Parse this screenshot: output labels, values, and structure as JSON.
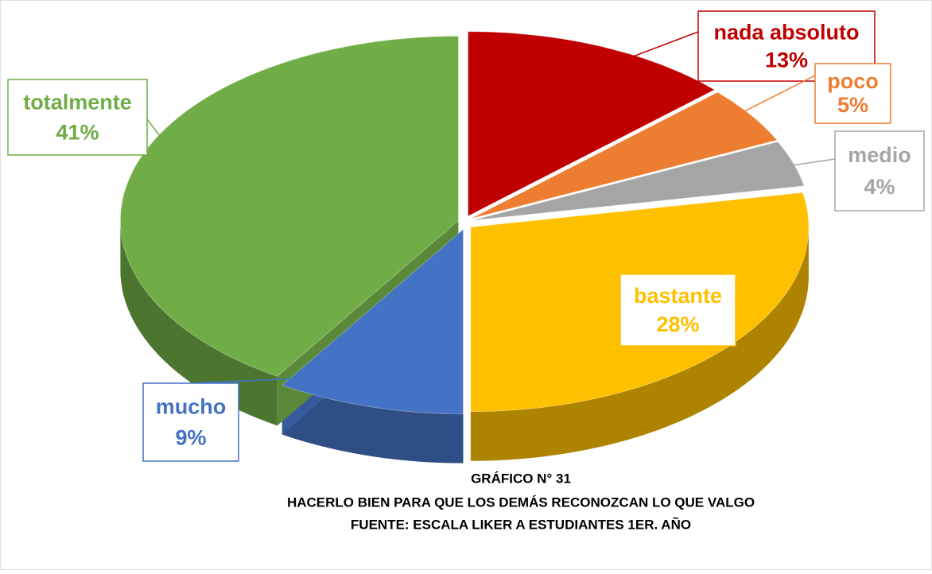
{
  "chart_data": {
    "type": "pie",
    "title": "GRÁFICO N° 31",
    "subtitle": "HACERLO BIEN PARA QUE LOS DEMÁS RECONOZCAN LO QUE VALGO",
    "source": "FUENTE: ESCALA LIKER A ESTUDIANTES 1ER. AÑO",
    "categories": [
      "nada absoluto",
      "poco",
      "medio",
      "bastante",
      "mucho",
      "totalmente"
    ],
    "values": [
      13,
      5,
      4,
      28,
      9,
      41
    ],
    "value_labels": [
      "13%",
      "5%",
      "4%",
      "28%",
      "9%",
      "41%"
    ],
    "colors": [
      "#c00000",
      "#ed7d31",
      "#a5a5a5",
      "#ffc000",
      "#4472c4",
      "#70ad47"
    ]
  }
}
